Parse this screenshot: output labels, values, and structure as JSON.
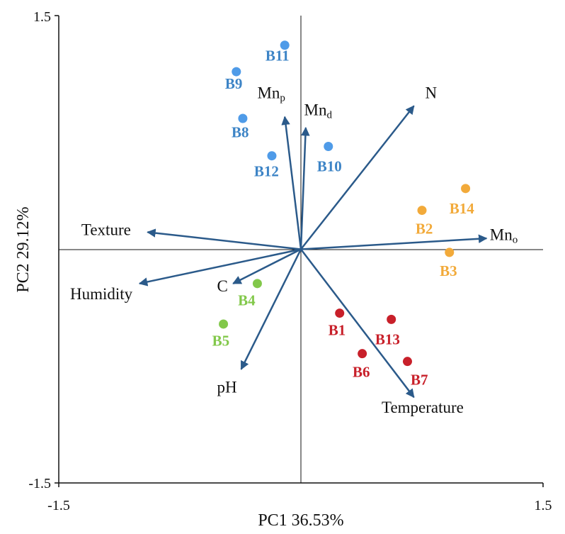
{
  "chart_data": {
    "type": "biplot",
    "xlabel": "PC1 36.53%",
    "ylabel": "PC2 29.12%",
    "xlim": [
      -1.5,
      1.5
    ],
    "ylim": [
      -1.5,
      1.5
    ],
    "x_ticks": [
      "-1.5",
      "1.5"
    ],
    "y_ticks": [
      "1.5",
      "-1.5"
    ],
    "grid": false,
    "colors": {
      "blue": "#4f9be8",
      "blue_label": "#3d84c6",
      "orange": "#f2aa3a",
      "green": "#82c84a",
      "red": "#c8202a",
      "arrow": "#2b5a8a"
    },
    "loadings": [
      {
        "name": "Mn",
        "sub": "p",
        "x": -0.1,
        "y": 0.85,
        "label_x": -0.27,
        "label_y": 0.97,
        "anchor": "start"
      },
      {
        "name": "Mn",
        "sub": "d",
        "x": 0.03,
        "y": 0.78,
        "label_x": 0.02,
        "label_y": 0.86,
        "anchor": "start"
      },
      {
        "name": "N",
        "sub": "",
        "x": 0.7,
        "y": 0.92,
        "label_x": 0.77,
        "label_y": 0.97,
        "anchor": "start"
      },
      {
        "name": "Texture",
        "sub": "",
        "x": -0.95,
        "y": 0.11,
        "label_x": -1.36,
        "label_y": 0.09,
        "anchor": "start"
      },
      {
        "name": "Mn",
        "sub": "o",
        "x": 1.15,
        "y": 0.07,
        "label_x": 1.17,
        "label_y": 0.06,
        "anchor": "start"
      },
      {
        "name": "Humidity",
        "sub": "",
        "x": -1.0,
        "y": -0.22,
        "label_x": -1.43,
        "label_y": -0.32,
        "anchor": "start"
      },
      {
        "name": "C",
        "sub": "",
        "x": -0.42,
        "y": -0.22,
        "label_x": -0.52,
        "label_y": -0.27,
        "anchor": "start"
      },
      {
        "name": "pH",
        "sub": "",
        "x": -0.37,
        "y": -0.77,
        "label_x": -0.52,
        "label_y": -0.92,
        "anchor": "start"
      },
      {
        "name": "Temperature",
        "sub": "",
        "x": 0.7,
        "y": -0.95,
        "label_x": 0.5,
        "label_y": -1.05,
        "anchor": "start"
      }
    ],
    "groups": [
      {
        "name": "blue",
        "color": "#4f9be8",
        "label_color": "#3d84c6",
        "points": [
          {
            "label": "B11",
            "x": -0.1,
            "y": 1.31,
            "lx": -0.22,
            "ly": 1.21
          },
          {
            "label": "B9",
            "x": -0.4,
            "y": 1.14,
            "lx": -0.47,
            "ly": 1.03
          },
          {
            "label": "B8",
            "x": -0.36,
            "y": 0.84,
            "lx": -0.43,
            "ly": 0.72
          },
          {
            "label": "B12",
            "x": -0.18,
            "y": 0.6,
            "lx": -0.29,
            "ly": 0.47
          },
          {
            "label": "B10",
            "x": 0.17,
            "y": 0.66,
            "lx": 0.1,
            "ly": 0.5
          }
        ]
      },
      {
        "name": "orange",
        "color": "#f2aa3a",
        "label_color": "#f2aa3a",
        "points": [
          {
            "label": "B14",
            "x": 1.02,
            "y": 0.39,
            "lx": 0.92,
            "ly": 0.23
          },
          {
            "label": "B2",
            "x": 0.75,
            "y": 0.25,
            "lx": 0.71,
            "ly": 0.1
          },
          {
            "label": "B3",
            "x": 0.92,
            "y": -0.02,
            "lx": 0.86,
            "ly": -0.17
          }
        ]
      },
      {
        "name": "green",
        "color": "#82c84a",
        "label_color": "#82c84a",
        "points": [
          {
            "label": "B4",
            "x": -0.27,
            "y": -0.22,
            "lx": -0.39,
            "ly": -0.36
          },
          {
            "label": "B5",
            "x": -0.48,
            "y": -0.48,
            "lx": -0.55,
            "ly": -0.62
          }
        ]
      },
      {
        "name": "red",
        "color": "#c8202a",
        "label_color": "#c8202a",
        "points": [
          {
            "label": "B1",
            "x": 0.24,
            "y": -0.41,
            "lx": 0.17,
            "ly": -0.55
          },
          {
            "label": "B13",
            "x": 0.56,
            "y": -0.45,
            "lx": 0.46,
            "ly": -0.61
          },
          {
            "label": "B6",
            "x": 0.38,
            "y": -0.67,
            "lx": 0.32,
            "ly": -0.82
          },
          {
            "label": "B7",
            "x": 0.66,
            "y": -0.72,
            "lx": 0.68,
            "ly": -0.87
          }
        ]
      }
    ]
  }
}
